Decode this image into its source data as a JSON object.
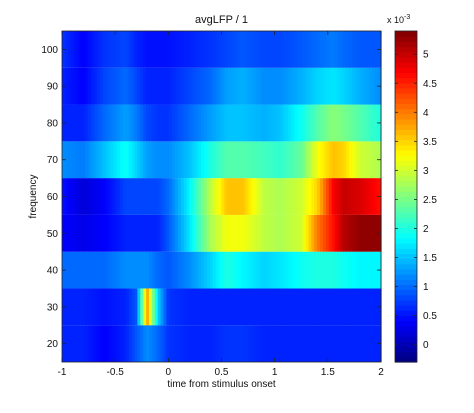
{
  "chart_data": {
    "type": "heatmap",
    "title": "avgLFP / 1",
    "xlabel": "time from stimulus onset",
    "ylabel": "frequency",
    "xlim": [
      -1,
      2
    ],
    "ylim": [
      15,
      105
    ],
    "x_ticks": [
      -1,
      -0.5,
      0,
      0.5,
      1,
      1.5,
      2
    ],
    "x_tick_labels": [
      "-1",
      "-0.5",
      "0",
      "0.5",
      "1",
      "1.5",
      "2"
    ],
    "y_ticks": [
      20,
      30,
      40,
      50,
      60,
      70,
      80,
      90,
      100
    ],
    "y_tick_labels": [
      "20",
      "30",
      "40",
      "50",
      "60",
      "70",
      "80",
      "90",
      "100"
    ],
    "colorbar": {
      "colormap": "jet",
      "exponent_label": "x 10",
      "exponent": "-3",
      "range": [
        -0.3,
        5.4
      ],
      "ticks": [
        0,
        0.5,
        1,
        1.5,
        2,
        2.5,
        3,
        3.5,
        4,
        4.5,
        5
      ],
      "tick_labels": [
        "0",
        "0.5",
        "1",
        "1.5",
        "2",
        "2.5",
        "3",
        "3.5",
        "4",
        "4.5",
        "5"
      ]
    },
    "rows": [
      20,
      30,
      40,
      50,
      60,
      70,
      80,
      90,
      100
    ],
    "time_knots": [
      -1.0,
      -0.8,
      -0.6,
      -0.4,
      -0.3,
      -0.2,
      -0.1,
      0.0,
      0.2,
      0.4,
      0.55,
      0.7,
      0.9,
      1.05,
      1.25,
      1.4,
      1.55,
      1.65,
      1.8,
      2.0
    ],
    "values": [
      [
        0.6,
        0.6,
        0.4,
        0.6,
        0.9,
        1.2,
        1.0,
        0.7,
        0.6,
        0.6,
        0.7,
        0.7,
        0.6,
        0.6,
        0.6,
        0.6,
        0.6,
        0.6,
        0.6,
        0.6
      ],
      [
        0.6,
        0.6,
        0.5,
        0.6,
        0.9,
        3.8,
        1.6,
        0.7,
        0.6,
        0.6,
        0.6,
        0.6,
        0.6,
        0.6,
        0.6,
        0.6,
        0.6,
        0.6,
        0.6,
        0.6
      ],
      [
        1.0,
        1.0,
        1.0,
        1.2,
        1.2,
        1.2,
        1.0,
        0.9,
        1.2,
        1.6,
        2.0,
        1.8,
        1.6,
        1.7,
        1.9,
        2.0,
        2.0,
        1.9,
        1.8,
        1.8
      ],
      [
        0.4,
        0.3,
        0.4,
        0.6,
        0.6,
        0.6,
        0.6,
        0.9,
        1.7,
        2.8,
        3.2,
        3.2,
        2.9,
        2.8,
        3.0,
        4.0,
        4.6,
        5.1,
        5.3,
        5.3
      ],
      [
        0.5,
        0.2,
        0.4,
        0.8,
        0.8,
        0.8,
        0.8,
        1.0,
        1.8,
        2.9,
        3.6,
        3.6,
        2.9,
        2.8,
        3.0,
        3.5,
        4.7,
        5.0,
        4.9,
        4.6
      ],
      [
        1.2,
        1.1,
        1.5,
        1.9,
        1.6,
        1.3,
        1.2,
        1.2,
        1.5,
        2.0,
        2.3,
        2.3,
        2.2,
        2.1,
        2.4,
        3.2,
        3.6,
        3.5,
        3.0,
        2.8
      ],
      [
        0.6,
        0.6,
        1.0,
        1.3,
        1.1,
        0.8,
        0.7,
        0.7,
        1.0,
        1.3,
        1.5,
        1.5,
        1.4,
        1.5,
        1.9,
        2.3,
        2.6,
        2.5,
        2.3,
        2.0
      ],
      [
        0.6,
        0.4,
        0.8,
        1.0,
        0.8,
        0.6,
        0.6,
        0.6,
        0.8,
        1.0,
        1.3,
        1.4,
        1.2,
        1.2,
        1.4,
        1.6,
        1.7,
        1.6,
        1.4,
        1.2
      ],
      [
        0.7,
        0.4,
        0.7,
        0.8,
        0.6,
        0.5,
        0.5,
        0.5,
        0.6,
        0.7,
        0.8,
        0.9,
        0.8,
        0.8,
        0.9,
        1.0,
        1.1,
        1.0,
        0.9,
        0.9
      ]
    ]
  }
}
